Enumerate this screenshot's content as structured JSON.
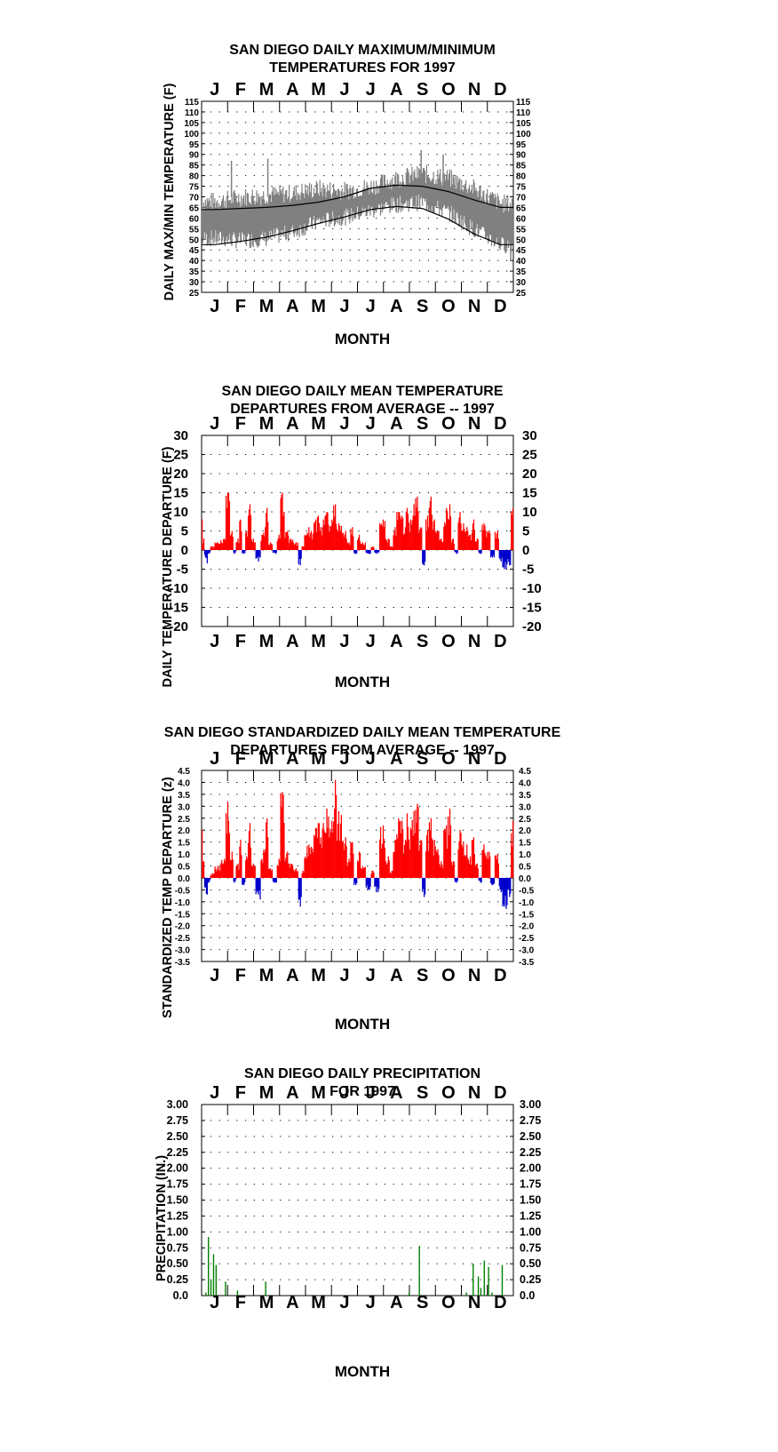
{
  "chart_data": [
    {
      "type": "line",
      "title": [
        "SAN DIEGO DAILY MAXIMUM/MINIMUM",
        "TEMPERATURES FOR 1997"
      ],
      "xlabel": "MONTH",
      "ylabel": "DAILY MAX/MIN TEMPERATURE (F)",
      "months": [
        "J",
        "F",
        "M",
        "A",
        "M",
        "J",
        "J",
        "A",
        "S",
        "O",
        "N",
        "D"
      ],
      "ylim": [
        25,
        115
      ],
      "yticks": [
        "115",
        "110",
        "105",
        "100",
        "95",
        "90",
        "85",
        "80",
        "75",
        "70",
        "65",
        "60",
        "55",
        "50",
        "45",
        "40",
        "35",
        "30",
        "25"
      ],
      "grid": "dotted",
      "colors": {
        "observed": "#808080",
        "normals": "#000000"
      },
      "normal_max_monthly": {
        "x_month": [
          0.5,
          1.5,
          2.5,
          3.5,
          4.5,
          5.5,
          6.5,
          7.5,
          8.5,
          9.5,
          10.5,
          11.5
        ],
        "values": [
          64,
          64.5,
          65,
          66,
          67.5,
          70,
          74,
          75.5,
          75,
          72.5,
          68.5,
          65
        ]
      },
      "normal_min_monthly": {
        "x_month": [
          0.5,
          1.5,
          2.5,
          3.5,
          4.5,
          5.5,
          6.5,
          7.5,
          8.5,
          9.5,
          10.5,
          11.5
        ],
        "values": [
          47.5,
          49,
          51,
          54,
          57.5,
          60.5,
          64,
          65.5,
          64.5,
          59.5,
          52.5,
          47.5
        ]
      },
      "observed_max_monthly": {
        "x_month": [
          0.5,
          1.5,
          2.5,
          3.5,
          4.5,
          5.5,
          6.5,
          7.5,
          8.5,
          9.5,
          10.5,
          11.5
        ],
        "values": [
          66,
          68,
          69,
          70,
          72,
          71,
          73,
          77,
          79,
          77,
          72,
          65
        ]
      },
      "observed_min_monthly": {
        "x_month": [
          0.5,
          1.5,
          2.5,
          3.5,
          4.5,
          5.5,
          6.5,
          7.5,
          8.5,
          9.5,
          10.5,
          11.5
        ],
        "values": [
          52,
          51,
          52,
          55,
          60,
          62,
          65,
          68,
          69,
          64,
          56,
          49
        ]
      },
      "observed_extremes": [
        {
          "x_month": 1.15,
          "value": 87
        },
        {
          "x_month": 2.55,
          "value": 88
        },
        {
          "x_month": 8.45,
          "value": 92
        },
        {
          "x_month": 9.3,
          "value": 90
        },
        {
          "x_month": 11.9,
          "value": 40
        }
      ]
    },
    {
      "type": "bar",
      "title": [
        "SAN DIEGO DAILY MEAN TEMPERATURE",
        "DEPARTURES FROM AVERAGE -- 1997"
      ],
      "xlabel": "MONTH",
      "ylabel": "DAILY TEMPERATURE DEPARTURE (F)",
      "months": [
        "J",
        "F",
        "M",
        "A",
        "M",
        "J",
        "J",
        "A",
        "S",
        "O",
        "N",
        "D"
      ],
      "ylim": [
        -20,
        30
      ],
      "yticks": [
        "30",
        "25",
        "20",
        "15",
        "10",
        "5",
        "0",
        "-5",
        "-10",
        "-15",
        "-20"
      ],
      "grid": "dotted",
      "colors": {
        "positive": "#ff0000",
        "negative": "#0000cc"
      },
      "series_x_day": [
        0,
        2,
        4,
        6,
        8,
        12,
        18,
        26,
        30,
        35,
        38,
        42,
        45,
        49,
        52,
        56,
        60,
        66,
        68,
        70,
        74,
        76,
        80,
        86,
        90,
        94,
        100,
        104,
        110,
        115,
        118,
        121,
        125,
        128,
        131,
        133,
        136,
        139,
        142,
        146,
        152,
        156,
        160,
        168,
        172,
        176,
        180,
        184,
        188,
        196,
        200,
        204,
        212,
        218,
        222,
        226,
        230,
        234,
        238,
        240,
        244,
        248,
        252,
        256,
        260,
        264,
        268,
        272,
        276,
        280,
        286,
        290,
        294,
        298,
        302,
        306,
        310,
        314,
        318,
        322,
        326,
        330,
        336,
        340,
        346,
        350,
        354,
        356,
        360,
        364
      ],
      "series_values": [
        8,
        3,
        -2,
        -3.5,
        -1,
        1,
        2,
        3,
        15,
        5,
        -1,
        3,
        8,
        -1,
        5,
        12,
        3,
        -3,
        -2,
        4,
        6,
        11,
        2,
        -1,
        4,
        15,
        5,
        3,
        2,
        -4,
        1,
        4,
        6,
        5,
        7,
        8,
        9,
        6,
        8,
        10,
        8,
        12,
        7,
        5,
        2,
        6,
        -1,
        4,
        2,
        -1,
        1,
        -1,
        8,
        3,
        1,
        6,
        10,
        9,
        6,
        11,
        8,
        12,
        14,
        6,
        -4,
        9,
        14,
        8,
        5,
        3,
        11,
        12,
        3,
        -1,
        10,
        7,
        6,
        4,
        8,
        3,
        -1,
        7,
        5,
        -2,
        5,
        -3,
        -5,
        -5,
        -4,
        11
      ]
    },
    {
      "type": "bar",
      "title": [
        "SAN DIEGO STANDARDIZED DAILY MEAN TEMPERATURE",
        "DEPARTURES FROM AVERAGE -- 1997"
      ],
      "xlabel": "MONTH",
      "ylabel": "STANDARDIZED TEMP DEPARTURE (z)",
      "months": [
        "J",
        "F",
        "M",
        "A",
        "M",
        "J",
        "J",
        "A",
        "S",
        "O",
        "N",
        "D"
      ],
      "ylim": [
        -3.5,
        4.5
      ],
      "yticks": [
        "4.5",
        "4.0",
        "3.5",
        "3.0",
        "2.5",
        "2.0",
        "1.5",
        "1.0",
        "0.5",
        "0.0",
        "-0.5",
        "-1.0",
        "-1.5",
        "-2.0",
        "-2.5",
        "-3.0",
        "-3.5"
      ],
      "grid": "dotted",
      "colors": {
        "positive": "#ff0000",
        "negative": "#0000cc"
      },
      "series_x_day": [
        0,
        2,
        4,
        6,
        8,
        12,
        18,
        26,
        30,
        35,
        38,
        42,
        45,
        49,
        52,
        56,
        60,
        66,
        68,
        70,
        74,
        76,
        80,
        86,
        90,
        94,
        100,
        104,
        110,
        115,
        118,
        121,
        125,
        128,
        131,
        133,
        136,
        139,
        142,
        146,
        152,
        156,
        160,
        168,
        172,
        176,
        180,
        184,
        188,
        196,
        200,
        204,
        212,
        218,
        222,
        226,
        230,
        234,
        238,
        240,
        244,
        248,
        252,
        256,
        260,
        264,
        268,
        272,
        276,
        280,
        286,
        290,
        294,
        298,
        302,
        306,
        310,
        314,
        318,
        322,
        326,
        330,
        336,
        340,
        346,
        350,
        354,
        356,
        360,
        364
      ],
      "series_values": [
        2,
        0.7,
        -0.4,
        -0.7,
        -0.2,
        0.2,
        0.5,
        0.8,
        3.2,
        1.1,
        -0.2,
        0.6,
        1.6,
        -0.3,
        0.9,
        2.3,
        0.6,
        -0.7,
        -0.9,
        0.8,
        1.2,
        2.5,
        0.4,
        -0.2,
        0.8,
        3.6,
        1.1,
        0.6,
        0.4,
        -1.2,
        0.3,
        0.9,
        1.4,
        1.3,
        1.8,
        2.1,
        2.3,
        1.7,
        2.3,
        2.9,
        2.4,
        4.1,
        2.8,
        1.7,
        0.8,
        1.5,
        -0.3,
        1.1,
        0.5,
        -0.5,
        0.3,
        -0.6,
        2.2,
        0.9,
        0.3,
        1.6,
        2.5,
        2.4,
        1.6,
        2.7,
        2.1,
        2.8,
        3.1,
        1.6,
        -0.8,
        2,
        2.5,
        1.6,
        1.2,
        0.7,
        2.2,
        2.9,
        0.7,
        -0.2,
        2,
        1.5,
        1.4,
        0.9,
        1.7,
        0.6,
        -0.2,
        1.4,
        1.1,
        -0.3,
        1,
        -0.6,
        -1.2,
        -1.3,
        -0.8,
        2.4
      ]
    },
    {
      "type": "bar",
      "title": [
        "SAN DIEGO DAILY PRECIPITATION",
        "FOR 1997"
      ],
      "xlabel": "MONTH",
      "ylabel": "PRECIPITATION (IN.)",
      "months": [
        "J",
        "F",
        "M",
        "A",
        "M",
        "J",
        "J",
        "A",
        "S",
        "O",
        "N",
        "D"
      ],
      "ylim": [
        0,
        3
      ],
      "yticks": [
        "3.00",
        "2.75",
        "2.50",
        "2.25",
        "2.00",
        "1.75",
        "1.50",
        "1.25",
        "1.00",
        "0.75",
        "0.50",
        "0.25",
        "0.0"
      ],
      "grid": "dotted",
      "colors": {
        "bars": "#008000"
      },
      "series_x_day": [
        5,
        8,
        11,
        14,
        17,
        28,
        42,
        75,
        243,
        255,
        310,
        318,
        324,
        327,
        331,
        336,
        340,
        352
      ],
      "series_values": [
        0.05,
        0.92,
        0.25,
        0.65,
        0.48,
        0.22,
        0.08,
        0.22,
        0.05,
        0.78,
        0.05,
        0.5,
        0.3,
        0.12,
        0.55,
        0.45,
        0.05,
        0.48
      ]
    }
  ]
}
